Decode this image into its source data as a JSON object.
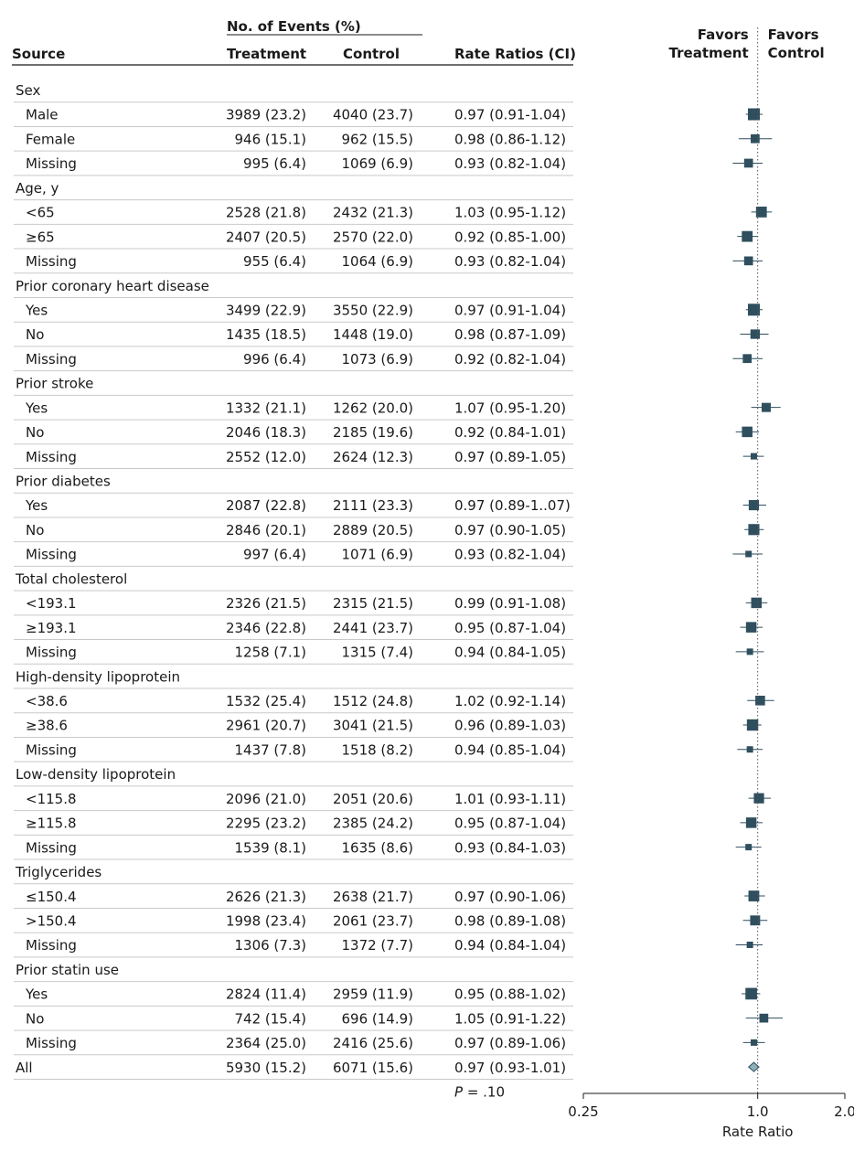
{
  "chart_data": {
    "type": "forest",
    "headers": {
      "group": "No. of Events (%)",
      "source": "Source",
      "treatment": "Treatment",
      "control": "Control",
      "rate": "Rate Ratios (CI)",
      "favors_left": [
        "Favors",
        "Treatment"
      ],
      "favors_right": [
        "Favors",
        "Control"
      ]
    },
    "x_axis": {
      "label": "Rate Ratio",
      "scale": "log",
      "range": [
        0.25,
        2.0
      ],
      "reference": 1.0,
      "ticks": [
        {
          "value": 0.25,
          "label": "0.25"
        },
        {
          "value": 1.0,
          "label": "1.0"
        },
        {
          "value": 2.0,
          "label": "2.0"
        }
      ]
    },
    "p_value": {
      "italic": "P",
      "text": " = .10"
    },
    "rows": [
      {
        "kind": "header",
        "label": "Sex"
      },
      {
        "kind": "data",
        "label": "Male",
        "treatment": "3989 (23.2)",
        "control": "4040 (23.7)",
        "ratio_text": "0.97 (0.91-1.04)",
        "rr": 0.97,
        "lo": 0.91,
        "hi": 1.04,
        "weight": 1.0
      },
      {
        "kind": "data",
        "label": "Female",
        "treatment": "946 (15.1)",
        "control": "962 (15.5)",
        "ratio_text": "0.98 (0.86-1.12)",
        "rr": 0.98,
        "lo": 0.86,
        "hi": 1.12,
        "weight": 0.45
      },
      {
        "kind": "data",
        "label": "Missing",
        "treatment": "995 (6.4)",
        "control": "1069 (6.9)",
        "ratio_text": "0.93 (0.82-1.04)",
        "rr": 0.93,
        "lo": 0.82,
        "hi": 1.04,
        "weight": 0.45
      },
      {
        "kind": "header",
        "label": "Age, y"
      },
      {
        "kind": "data",
        "label": "<65",
        "treatment": "2528 (21.8)",
        "control": "2432 (21.3)",
        "ratio_text": "1.03 (0.95-1.12)",
        "rr": 1.03,
        "lo": 0.95,
        "hi": 1.12,
        "weight": 0.8
      },
      {
        "kind": "data",
        "label": "≥65",
        "treatment": "2407 (20.5)",
        "control": "2570 (22.0)",
        "ratio_text": "0.92 (0.85-1.00)",
        "rr": 0.92,
        "lo": 0.85,
        "hi": 1.0,
        "weight": 0.8
      },
      {
        "kind": "data",
        "label": "Missing",
        "treatment": "955 (6.4)",
        "control": "1064  (6.9)",
        "ratio_text": "0.93 (0.82-1.04)",
        "rr": 0.93,
        "lo": 0.82,
        "hi": 1.04,
        "weight": 0.45
      },
      {
        "kind": "header",
        "label": "Prior coronary heart disease"
      },
      {
        "kind": "data",
        "label": "Yes",
        "treatment": "3499 (22.9)",
        "control": "3550 (22.9)",
        "ratio_text": "0.97 (0.91-1.04)",
        "rr": 0.97,
        "lo": 0.91,
        "hi": 1.04,
        "weight": 1.0
      },
      {
        "kind": "data",
        "label": "No",
        "treatment": "1435 (18.5)",
        "control": "1448 (19.0)",
        "ratio_text": "0.98 (0.87-1.09)",
        "rr": 0.98,
        "lo": 0.87,
        "hi": 1.09,
        "weight": 0.55
      },
      {
        "kind": "data",
        "label": "Missing",
        "treatment": "996 (6.4)",
        "control": "1073 (6.9)",
        "ratio_text": "0.92 (0.82-1.04)",
        "rr": 0.92,
        "lo": 0.82,
        "hi": 1.04,
        "weight": 0.45
      },
      {
        "kind": "header",
        "label": "Prior stroke"
      },
      {
        "kind": "data",
        "label": "Yes",
        "treatment": "1332 (21.1)",
        "control": "1262 (20.0)",
        "ratio_text": "1.07 (0.95-1.20)",
        "rr": 1.07,
        "lo": 0.95,
        "hi": 1.2,
        "weight": 0.5
      },
      {
        "kind": "data",
        "label": "No",
        "treatment": "2046 (18.3)",
        "control": "2185 (19.6)",
        "ratio_text": "0.92 (0.84-1.01)",
        "rr": 0.92,
        "lo": 0.84,
        "hi": 1.01,
        "weight": 0.75
      },
      {
        "kind": "data",
        "label": "Missing",
        "treatment": "2552 (12.0)",
        "control": "2624 (12.3)",
        "ratio_text": "0.97 (0.89-1.05)",
        "rr": 0.97,
        "lo": 0.89,
        "hi": 1.05,
        "weight": 0.0
      },
      {
        "kind": "header",
        "label": "Prior diabetes"
      },
      {
        "kind": "data",
        "label": "Yes",
        "treatment": "2087 (22.8)",
        "control": "2111 (23.3)",
        "ratio_text": "0.97 (0.89-1..07)",
        "rr": 0.97,
        "lo": 0.89,
        "hi": 1.07,
        "weight": 0.7
      },
      {
        "kind": "data",
        "label": "No",
        "treatment": "2846 (20.1)",
        "control": "2889 (20.5)",
        "ratio_text": "0.97 (0.90-1.05)",
        "rr": 0.97,
        "lo": 0.9,
        "hi": 1.05,
        "weight": 0.85
      },
      {
        "kind": "data",
        "label": "Missing",
        "treatment": "997 (6.4)",
        "control": "1071 (6.9)",
        "ratio_text": "0.93 (0.82-1.04)",
        "rr": 0.93,
        "lo": 0.82,
        "hi": 1.04,
        "weight": 0.0
      },
      {
        "kind": "header",
        "label": "Total cholesterol"
      },
      {
        "kind": "data",
        "label": "<193.1",
        "treatment": "2326 (21.5)",
        "control": "2315 (21.5)",
        "ratio_text": "0.99 (0.91-1.08)",
        "rr": 0.99,
        "lo": 0.91,
        "hi": 1.08,
        "weight": 0.75
      },
      {
        "kind": "data",
        "label": "≥193.1",
        "treatment": "2346 (22.8)",
        "control": "2441 (23.7)",
        "ratio_text": "0.95 (0.87-1.04)",
        "rr": 0.95,
        "lo": 0.87,
        "hi": 1.04,
        "weight": 0.75
      },
      {
        "kind": "data",
        "label": "Missing",
        "treatment": "1258 (7.1)",
        "control": "1315 (7.4)",
        "ratio_text": "0.94 (0.84-1.05)",
        "rr": 0.94,
        "lo": 0.84,
        "hi": 1.05,
        "weight": 0.0
      },
      {
        "kind": "header",
        "label": "High-density lipoprotein"
      },
      {
        "kind": "data",
        "label": "<38.6",
        "treatment": "1532 (25.4)",
        "control": "1512 (24.8)",
        "ratio_text": "1.02 (0.92-1.14)",
        "rr": 1.02,
        "lo": 0.92,
        "hi": 1.14,
        "weight": 0.6
      },
      {
        "kind": "data",
        "label": "≥38.6",
        "treatment": "2961 (20.7)",
        "control": "3041 (21.5)",
        "ratio_text": "0.96 (0.89-1.03)",
        "rr": 0.96,
        "lo": 0.89,
        "hi": 1.03,
        "weight": 0.9
      },
      {
        "kind": "data",
        "label": "Missing",
        "treatment": "1437 (7.8)",
        "control": "1518 (8.2)",
        "ratio_text": "0.94 (0.85-1.04)",
        "rr": 0.94,
        "lo": 0.85,
        "hi": 1.04,
        "weight": 0.0
      },
      {
        "kind": "header",
        "label": "Low-density lipoprotein"
      },
      {
        "kind": "data",
        "label": "<115.8",
        "treatment": "2096 (21.0)",
        "control": "2051 (20.6)",
        "ratio_text": "1.01 (0.93-1.11)",
        "rr": 1.01,
        "lo": 0.93,
        "hi": 1.11,
        "weight": 0.7
      },
      {
        "kind": "data",
        "label": "≥115.8",
        "treatment": "2295 (23.2)",
        "control": "2385 (24.2)",
        "ratio_text": "0.95 (0.87-1.04)",
        "rr": 0.95,
        "lo": 0.87,
        "hi": 1.04,
        "weight": 0.75
      },
      {
        "kind": "data",
        "label": "Missing",
        "treatment": "1539 (8.1)",
        "control": "1635 (8.6)",
        "ratio_text": "0.93 (0.84-1.03)",
        "rr": 0.93,
        "lo": 0.84,
        "hi": 1.03,
        "weight": 0.0
      },
      {
        "kind": "header",
        "label": "Triglycerides"
      },
      {
        "kind": "data",
        "label": "≤150.4",
        "treatment": "2626 (21.3)",
        "control": "2638 (21.7)",
        "ratio_text": "0.97 (0.90-1.06)",
        "rr": 0.97,
        "lo": 0.9,
        "hi": 1.06,
        "weight": 0.8
      },
      {
        "kind": "data",
        "label": ">150.4",
        "treatment": "1998 (23.4)",
        "control": "2061 (23.7)",
        "ratio_text": "0.98 (0.89-1.08)",
        "rr": 0.98,
        "lo": 0.89,
        "hi": 1.08,
        "weight": 0.65
      },
      {
        "kind": "data",
        "label": "Missing",
        "treatment": "1306 (7.3)",
        "control": "1372 (7.7)",
        "ratio_text": "0.94 (0.84-1.04)",
        "rr": 0.94,
        "lo": 0.84,
        "hi": 1.04,
        "weight": 0.0
      },
      {
        "kind": "header",
        "label": "Prior statin use"
      },
      {
        "kind": "data",
        "label": "Yes",
        "treatment": "2824 (11.4)",
        "control": "2959 (11.9)",
        "ratio_text": "0.95 (0.88-1.02)",
        "rr": 0.95,
        "lo": 0.88,
        "hi": 1.02,
        "weight": 0.95
      },
      {
        "kind": "data",
        "label": "No",
        "treatment": "742 (15.4)",
        "control": "696 (14.9)",
        "ratio_text": "1.05 (0.91-1.22)",
        "rr": 1.05,
        "lo": 0.91,
        "hi": 1.22,
        "weight": 0.45
      },
      {
        "kind": "data",
        "label": "Missing",
        "treatment": "2364 (25.0)",
        "control": "2416 (25.6)",
        "ratio_text": "0.97 (0.89-1.06)",
        "rr": 0.97,
        "lo": 0.89,
        "hi": 1.06,
        "weight": 0.0
      },
      {
        "kind": "overall",
        "label": "All",
        "treatment": "5930 (15.2)",
        "control": "6071 (15.6)",
        "ratio_text": "0.97 (0.93-1.01)",
        "rr": 0.97,
        "lo": 0.93,
        "hi": 1.01
      }
    ]
  }
}
